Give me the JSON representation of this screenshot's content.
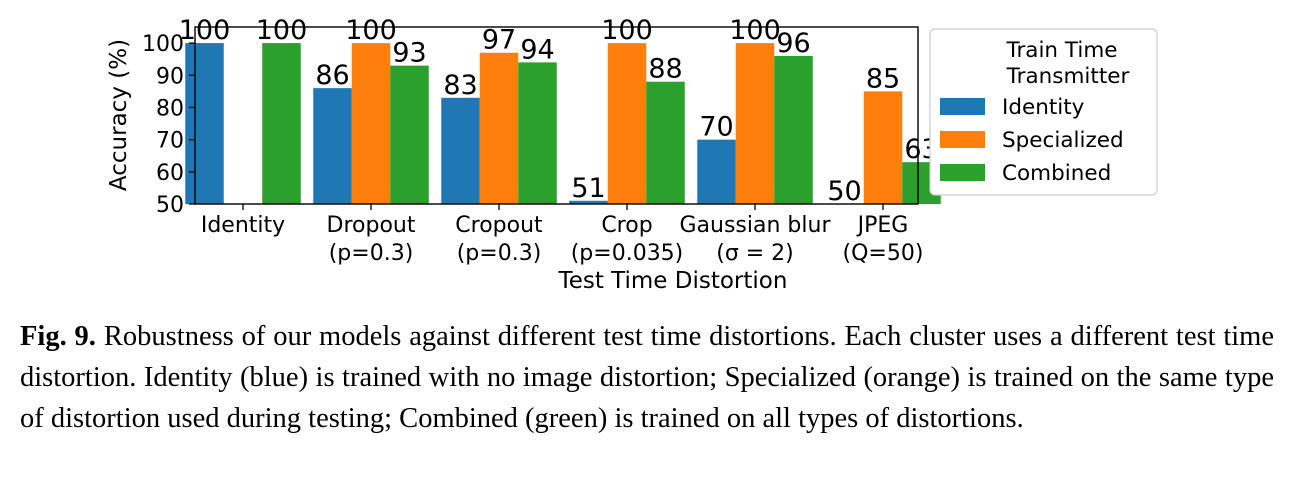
{
  "chart_data": {
    "type": "bar",
    "xlabel": "Test Time Distortion",
    "ylabel": "Accuracy (%)",
    "ylim": [
      50,
      105
    ],
    "yticks": [
      50,
      60,
      70,
      80,
      90,
      100
    ],
    "categories": [
      [
        "Identity"
      ],
      [
        "Dropout",
        "(p=0.3)"
      ],
      [
        "Cropout",
        "(p=0.3)"
      ],
      [
        "Crop",
        "(p=0.035)"
      ],
      [
        "Gaussian blur",
        "(σ = 2)"
      ],
      [
        "JPEG",
        "(Q=50)"
      ]
    ],
    "series": [
      {
        "name": "Identity",
        "color": "#1f77b4",
        "values": [
          100,
          86,
          83,
          51,
          70,
          50
        ]
      },
      {
        "name": "Specialized",
        "color": "#ff7f0e",
        "values": [
          null,
          100,
          97,
          100,
          100,
          85
        ]
      },
      {
        "name": "Combined",
        "color": "#2ca02c",
        "values": [
          100,
          93,
          94,
          88,
          96,
          63
        ]
      }
    ],
    "legend": {
      "title_lines": [
        "Train Time",
        "Transmitter"
      ],
      "placement": "right"
    },
    "grid": false
  },
  "caption": {
    "label": "Fig. 9.",
    "text": "Robustness of our models against different test time distortions. Each cluster uses a different test time distortion. Identity (blue) is trained with no image distortion; Specialized (orange) is trained on the same type of distortion used during testing; Combined (green) is trained on all types of distortions."
  }
}
